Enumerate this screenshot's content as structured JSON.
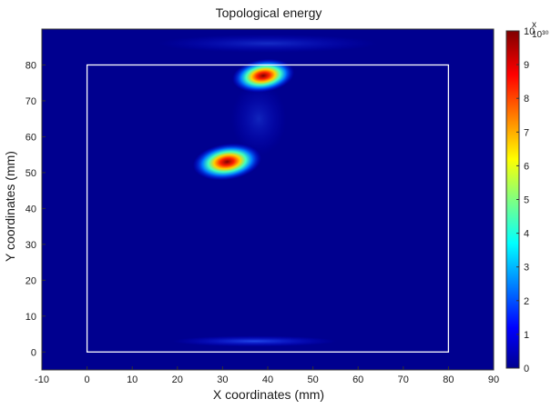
{
  "chart_data": {
    "type": "heatmap",
    "title": "Topological energy",
    "xlabel": "X coordinates (mm)",
    "ylabel": "Y coordinates (mm)",
    "xlim": [
      -10,
      90
    ],
    "ylim": [
      -5,
      90
    ],
    "x_ticks": [
      -10,
      0,
      10,
      20,
      30,
      40,
      50,
      60,
      70,
      80,
      90
    ],
    "y_ticks": [
      0,
      10,
      20,
      30,
      40,
      50,
      60,
      70,
      80
    ],
    "colorbar": {
      "colormap": "jet",
      "range": [
        0,
        10
      ],
      "ticks": [
        0,
        1,
        2,
        3,
        4,
        5,
        6,
        7,
        8,
        9,
        10
      ],
      "exponent_label": "x 10³⁰"
    },
    "specimen_outline": {
      "x": [
        0,
        80
      ],
      "y": [
        0,
        80
      ]
    },
    "hotspots": [
      {
        "x": 31,
        "y": 53,
        "peak": 10
      },
      {
        "x": 39,
        "y": 77,
        "peak": 8.5
      }
    ],
    "colors": {
      "background": "#00008f",
      "outline": "#ffffff"
    }
  }
}
